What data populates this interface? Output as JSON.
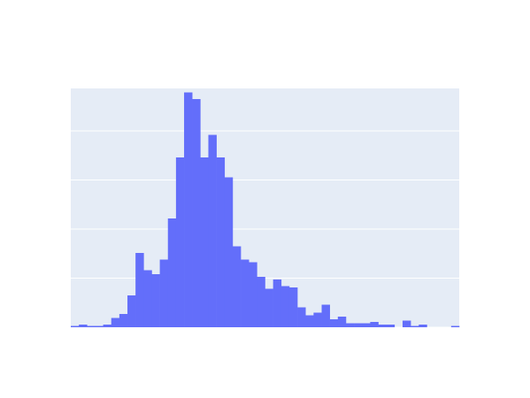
{
  "chart_data": {
    "type": "bar",
    "subtype": "histogram",
    "title": "",
    "xlabel": "",
    "ylabel": "",
    "show_tick_labels": false,
    "grid": "horizontal",
    "bin_count": 48,
    "values": [
      1,
      2,
      1,
      1,
      2,
      7,
      10,
      24,
      56,
      43,
      40,
      51,
      82,
      128,
      177,
      172,
      128,
      145,
      128,
      113,
      61,
      51,
      49,
      38,
      29,
      36,
      31,
      30,
      15,
      9,
      11,
      17,
      6,
      8,
      3,
      3,
      3,
      4,
      2,
      2,
      0,
      5,
      1,
      2,
      0,
      0,
      0,
      1
    ],
    "ylim": [
      0,
      180
    ],
    "gridlines": [
      0,
      37,
      74,
      111,
      148
    ],
    "colors": {
      "bar": "#636efa",
      "plot_background": "#e5ecf6",
      "grid": "#ffffff",
      "page_background": "#ffffff"
    }
  }
}
